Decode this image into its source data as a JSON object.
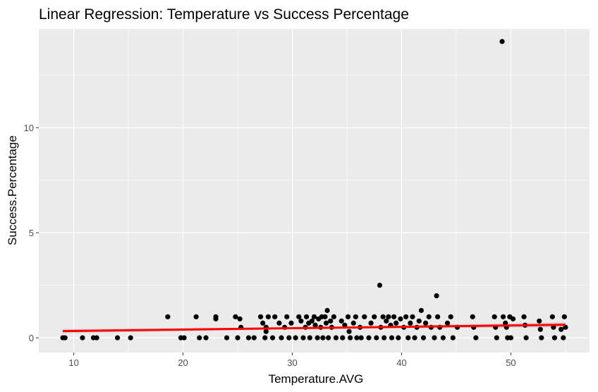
{
  "chart_data": {
    "type": "scatter",
    "title": "Linear Regression: Temperature vs Success Percentage",
    "xlabel": "Temperature.AVG",
    "ylabel": "Success.Percentage",
    "xlim": [
      6.8,
      57.2
    ],
    "ylim": [
      -0.7,
      14.7
    ],
    "x_ticks": [
      10,
      20,
      30,
      40,
      50
    ],
    "y_ticks": [
      0,
      5,
      10
    ],
    "grid": true,
    "legend": "none",
    "colors": {
      "panel": "#ebebeb",
      "grid": "#ffffff",
      "points": "#000000",
      "fit_line": "#ff0000",
      "ribbon": "#b3b3b3"
    },
    "series": [
      {
        "points": [
          [
            9,
            0
          ],
          [
            9.2,
            0
          ],
          [
            10.8,
            0
          ],
          [
            11.8,
            0
          ],
          [
            12.1,
            0
          ],
          [
            14,
            0
          ],
          [
            15.2,
            0
          ],
          [
            18.6,
            1.0
          ],
          [
            19.8,
            0
          ],
          [
            20.1,
            0
          ],
          [
            21.2,
            1.0
          ],
          [
            21.5,
            0
          ],
          [
            22.1,
            0
          ],
          [
            23,
            1.0
          ],
          [
            23,
            0.9
          ],
          [
            24,
            0
          ],
          [
            24.8,
            1.0
          ],
          [
            25,
            0
          ],
          [
            25.2,
            0.9
          ],
          [
            25.3,
            0.5
          ],
          [
            26,
            0
          ],
          [
            26.5,
            0
          ],
          [
            27.1,
            1.0
          ],
          [
            27.3,
            0.7
          ],
          [
            27.5,
            0
          ],
          [
            27.6,
            0.5
          ],
          [
            27.6,
            0.3
          ],
          [
            27.8,
            1.0
          ],
          [
            28.2,
            0
          ],
          [
            28.4,
            1.0
          ],
          [
            28.8,
            0.7
          ],
          [
            29,
            0
          ],
          [
            29.3,
            0.5
          ],
          [
            29.5,
            1.0
          ],
          [
            29.7,
            0
          ],
          [
            29.9,
            0.7
          ],
          [
            30.3,
            0
          ],
          [
            30.6,
            1.0
          ],
          [
            30.8,
            0.8
          ],
          [
            31,
            0
          ],
          [
            31.2,
            0.5
          ],
          [
            31.3,
            1.0
          ],
          [
            31.5,
            0.7
          ],
          [
            31.6,
            0
          ],
          [
            31.8,
            0.8
          ],
          [
            32,
            1.0
          ],
          [
            32.1,
            0.6
          ],
          [
            32.3,
            0
          ],
          [
            32.4,
            0.9
          ],
          [
            32.6,
            0.5
          ],
          [
            32.7,
            1.0
          ],
          [
            32.8,
            0
          ],
          [
            33,
            1.0
          ],
          [
            33.1,
            0.7
          ],
          [
            33.2,
            1.3
          ],
          [
            33.3,
            0
          ],
          [
            33.5,
            0.8
          ],
          [
            33.6,
            0.5
          ],
          [
            33.8,
            1.0
          ],
          [
            34,
            0
          ],
          [
            34.5,
            0.8
          ],
          [
            34.6,
            0
          ],
          [
            34.8,
            0.6
          ],
          [
            35.1,
            1.0
          ],
          [
            35.2,
            0.3
          ],
          [
            35.3,
            0
          ],
          [
            35.6,
            0.7
          ],
          [
            35.8,
            1.0
          ],
          [
            35.9,
            0
          ],
          [
            36.2,
            0.5
          ],
          [
            36.3,
            0
          ],
          [
            36.6,
            1.0
          ],
          [
            37,
            0
          ],
          [
            37.2,
            0.7
          ],
          [
            37.5,
            1.0
          ],
          [
            37.7,
            0
          ],
          [
            38,
            2.5
          ],
          [
            38.1,
            0.5
          ],
          [
            38.3,
            1.0
          ],
          [
            38.4,
            0
          ],
          [
            38.6,
            0.8
          ],
          [
            38.8,
            1.0
          ],
          [
            39,
            0.6
          ],
          [
            39.1,
            0
          ],
          [
            39.3,
            1.0
          ],
          [
            39.5,
            0.7
          ],
          [
            39.7,
            0
          ],
          [
            39.9,
            0.9
          ],
          [
            40.2,
            0.5
          ],
          [
            40.4,
            1.0
          ],
          [
            40.6,
            0
          ],
          [
            40.8,
            0.7
          ],
          [
            41,
            1.0
          ],
          [
            41.2,
            0
          ],
          [
            41.4,
            0.5
          ],
          [
            41.6,
            0.8
          ],
          [
            41.8,
            1.3
          ],
          [
            42,
            0
          ],
          [
            42.2,
            0.7
          ],
          [
            42.5,
            1.0
          ],
          [
            42.7,
            0.5
          ],
          [
            43,
            0
          ],
          [
            43.2,
            2.0
          ],
          [
            43.3,
            1.0
          ],
          [
            43.5,
            0.5
          ],
          [
            43.8,
            0
          ],
          [
            44.2,
            0.7
          ],
          [
            44.5,
            1.0
          ],
          [
            44.7,
            0
          ],
          [
            45.1,
            0.5
          ],
          [
            46.5,
            1.0
          ],
          [
            46.6,
            0.5
          ],
          [
            46.8,
            0
          ],
          [
            48.5,
            1.0
          ],
          [
            48.6,
            0.5
          ],
          [
            48.7,
            0
          ],
          [
            49.2,
            14.1
          ],
          [
            49.3,
            1.0
          ],
          [
            49.5,
            0.7
          ],
          [
            49.6,
            0.5
          ],
          [
            49.7,
            0
          ],
          [
            49.9,
            1.0
          ],
          [
            50,
            0
          ],
          [
            50.2,
            0.9
          ],
          [
            51.2,
            1.0
          ],
          [
            51.3,
            0.6
          ],
          [
            51.4,
            0
          ],
          [
            52.6,
            0.8
          ],
          [
            52.7,
            0.4
          ],
          [
            52.8,
            0
          ],
          [
            53.8,
            1.0
          ],
          [
            53.9,
            0.5
          ],
          [
            54,
            0
          ],
          [
            54.6,
            0.4
          ],
          [
            54.8,
            0
          ],
          [
            54.9,
            1.0
          ],
          [
            55,
            0.5
          ]
        ]
      }
    ],
    "fit_line": {
      "x": [
        9,
        55
      ],
      "y": [
        0.32,
        0.62
      ]
    },
    "confidence_band": {
      "x": [
        9,
        32,
        55
      ],
      "lower": [
        0.22,
        0.42,
        0.5
      ],
      "upper": [
        0.42,
        0.5,
        0.74
      ]
    }
  }
}
